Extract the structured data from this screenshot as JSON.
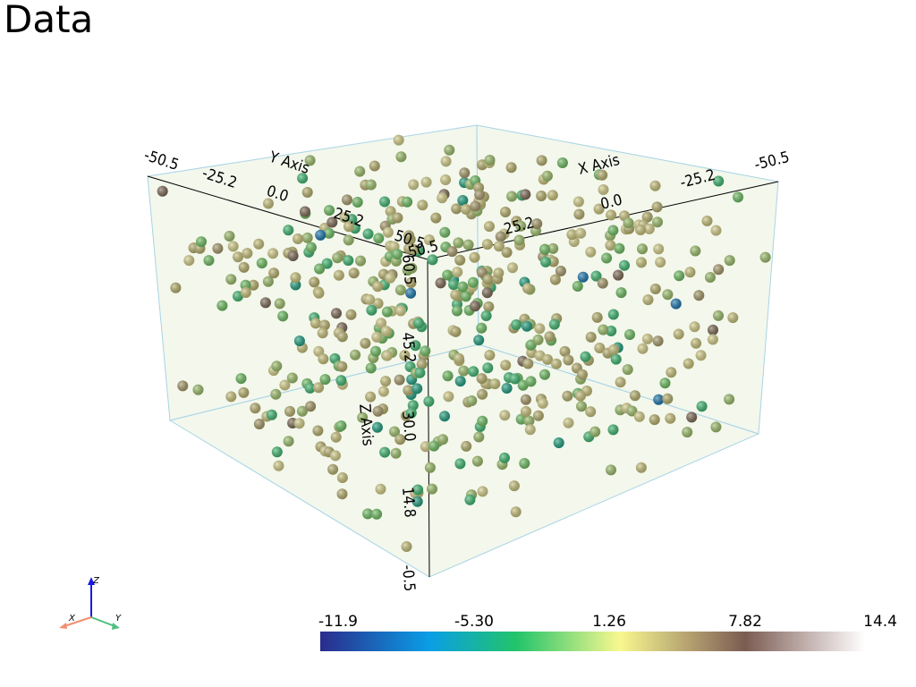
{
  "title": "Data",
  "axes": {
    "x": {
      "label": "X Axis",
      "ticks": [
        "-50.5",
        "-25.2",
        "0.0",
        "25.2",
        "50.5"
      ]
    },
    "y": {
      "label": "Y Axis",
      "ticks": [
        "-50.5",
        "-25.2",
        "0.0",
        "25.2",
        "50.5"
      ]
    },
    "z": {
      "label": "Z Axis",
      "ticks": [
        "-0.5",
        "14.8",
        "30.0",
        "45.2",
        "60.5"
      ]
    }
  },
  "colorbar": {
    "ticks": [
      "-11.9",
      "-5.30",
      "1.26",
      "7.82",
      "14.4"
    ]
  },
  "orientation": {
    "x": "X",
    "y": "Y",
    "z": "Z"
  }
}
